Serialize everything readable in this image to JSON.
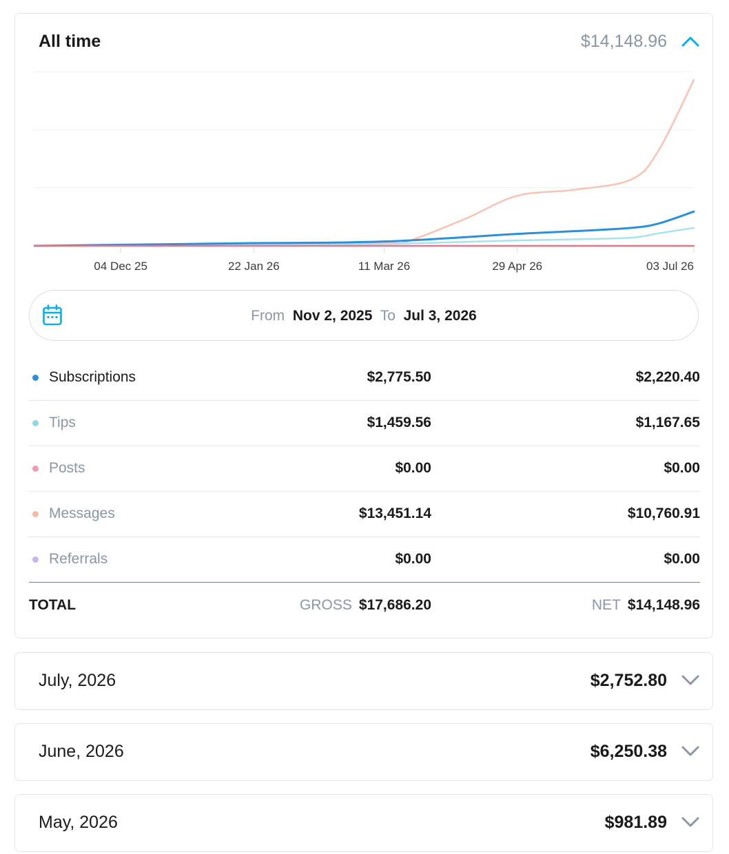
{
  "all_time": {
    "title": "All time",
    "amount": "$14,148.96",
    "expanded": true
  },
  "chart_data": {
    "type": "line",
    "x_ticks": [
      "04 Dec 25",
      "22 Jan 26",
      "11 Mar 26",
      "29 Apr 26",
      "03 Jul 26"
    ],
    "x_range": [
      "2025-11-02",
      "2026-07-03"
    ],
    "grid": true,
    "series": [
      {
        "name": "Messages",
        "color": "#f8c3b3",
        "x": [
          "2025-11-02",
          "2025-12-04",
          "2026-01-22",
          "2026-03-11",
          "2026-03-20",
          "2026-04-10",
          "2026-04-29",
          "2026-05-20",
          "2026-06-10",
          "2026-06-20",
          "2026-07-03"
        ],
        "y": [
          0,
          150,
          300,
          500,
          900,
          5000,
          9200,
          10300,
          12200,
          17500,
          30500
        ]
      },
      {
        "name": "Subscriptions",
        "color": "#2b8fdb",
        "x": [
          "2025-11-02",
          "2025-12-04",
          "2026-01-22",
          "2026-03-11",
          "2026-04-29",
          "2026-05-20",
          "2026-06-10",
          "2026-06-20",
          "2026-07-03"
        ],
        "y": [
          0,
          200,
          500,
          800,
          2200,
          2700,
          3300,
          4100,
          6300
        ]
      },
      {
        "name": "Tips",
        "color": "#a8e2ec",
        "x": [
          "2025-11-02",
          "2025-12-04",
          "2026-01-22",
          "2026-03-11",
          "2026-04-29",
          "2026-05-20",
          "2026-06-10",
          "2026-06-20",
          "2026-07-03"
        ],
        "y": [
          0,
          100,
          200,
          350,
          1000,
          1200,
          1500,
          2300,
          3300
        ]
      },
      {
        "name": "Posts",
        "color": "#e3768c",
        "x": [
          "2025-11-02",
          "2026-07-03"
        ],
        "y": [
          0,
          0
        ]
      }
    ]
  },
  "date_range": {
    "from_label": "From",
    "from_value": "Nov 2, 2025",
    "to_label": "To",
    "to_value": "Jul 3, 2026"
  },
  "breakdown": [
    {
      "label": "Subscriptions",
      "gross": "$2,775.50",
      "net": "$2,220.40",
      "color": "#2b8fdb",
      "active": true
    },
    {
      "label": "Tips",
      "gross": "$1,459.56",
      "net": "$1,167.65",
      "color": "#8fd9e6",
      "active": false
    },
    {
      "label": "Posts",
      "gross": "$0.00",
      "net": "$0.00",
      "color": "#f29ab2",
      "active": false
    },
    {
      "label": "Messages",
      "gross": "$13,451.14",
      "net": "$10,760.91",
      "color": "#f8b9a5",
      "active": false
    },
    {
      "label": "Referrals",
      "gross": "$0.00",
      "net": "$0.00",
      "color": "#c8b6ea",
      "active": false
    }
  ],
  "total": {
    "label": "TOTAL",
    "gross_label": "GROSS",
    "gross_value": "$17,686.20",
    "net_label": "NET",
    "net_value": "$14,148.96"
  },
  "months": [
    {
      "label": "July, 2026",
      "amount": "$2,752.80"
    },
    {
      "label": "June, 2026",
      "amount": "$6,250.38"
    },
    {
      "label": "May, 2026",
      "amount": "$981.89"
    }
  ],
  "colors": {
    "accent": "#00aff0",
    "muted_text": "#8a96a3"
  }
}
